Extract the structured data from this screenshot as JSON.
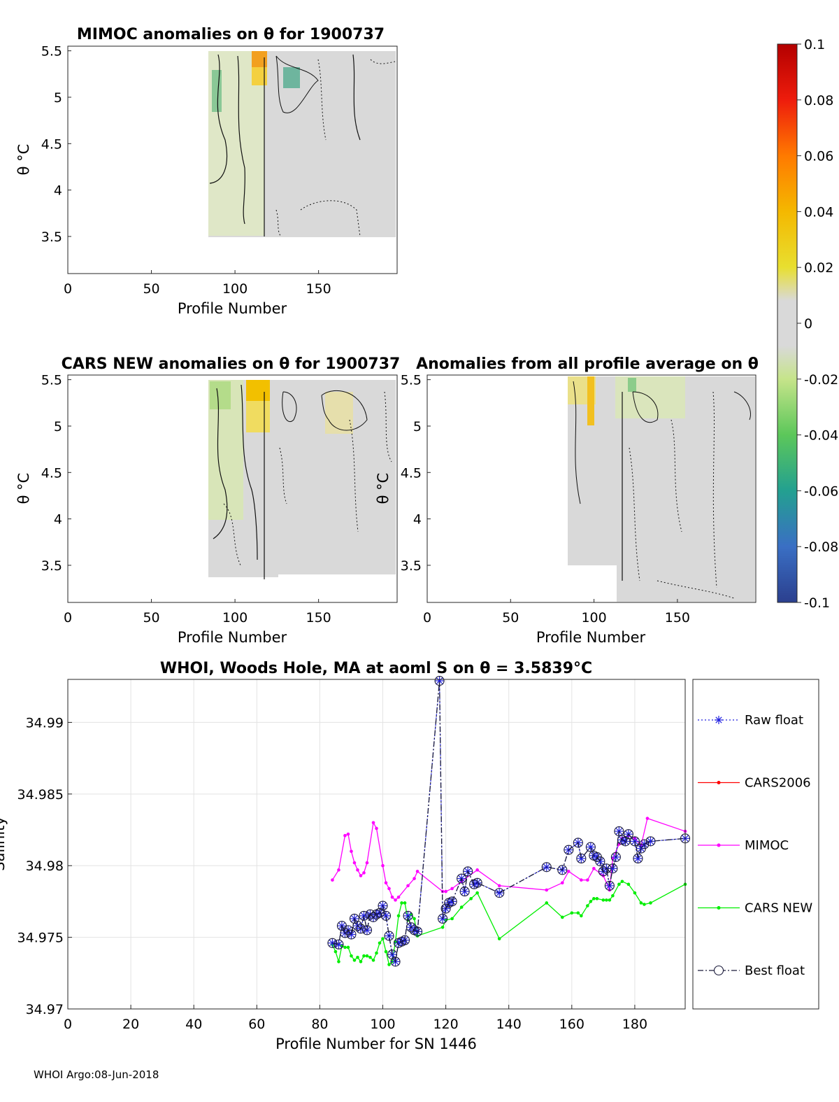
{
  "colors": {
    "raw_float": "#1f1fe0",
    "cars2006": "#ff0000",
    "mimoc": "#ff00ff",
    "cars_new": "#00ee00",
    "best_float": "#1a1a3a",
    "background_field": "#d9d9d9"
  },
  "colorbar": {
    "ticks": [
      "0.1",
      "0.08",
      "0.06",
      "0.04",
      "0.02",
      "0",
      "-0.02",
      "-0.04",
      "-0.06",
      "-0.08",
      "-0.1"
    ],
    "range": [
      -0.1,
      0.1
    ]
  },
  "panels": {
    "mimoc": {
      "title": "MIMOC anomalies on θ  for 1900737",
      "xlabel": "Profile Number",
      "ylabel": "θ °C",
      "xticks": [
        "0",
        "50",
        "100",
        "150"
      ],
      "yticks": [
        "5.5",
        "5",
        "4.5",
        "4",
        "3.5"
      ]
    },
    "cars_new": {
      "title": "CARS NEW anomalies on θ for 1900737",
      "xlabel": "Profile Number",
      "ylabel": "θ °C",
      "xticks": [
        "0",
        "50",
        "100",
        "150"
      ],
      "yticks": [
        "5.5",
        "5",
        "4.5",
        "4",
        "3.5"
      ]
    },
    "all_avg": {
      "title": "Anomalies from all profile average on θ",
      "xlabel": "Profile Number",
      "ylabel": "θ °C",
      "xticks": [
        "0",
        "50",
        "100",
        "150"
      ],
      "yticks": [
        "5.5",
        "5",
        "4.5",
        "4",
        "3.5"
      ]
    }
  },
  "footer": "WHOI Argo:08-Jun-2018",
  "chart_data": [
    {
      "type": "heatmap",
      "title": "MIMOC anomalies on θ  for 1900737",
      "xlabel": "Profile Number",
      "ylabel": "θ °C",
      "xlim": [
        0,
        197
      ],
      "ylim": [
        3.1,
        5.55
      ],
      "data_x_range": [
        84,
        196
      ],
      "data_y_range": [
        3.55,
        5.5
      ],
      "features": [
        {
          "x": [
            113,
            119
          ],
          "y": [
            5.2,
            5.5
          ],
          "anomaly": 0.05
        },
        {
          "x": [
            86,
            92
          ],
          "y": [
            4.8,
            5.2
          ],
          "anomaly": -0.035
        },
        {
          "x": [
            130,
            142
          ],
          "y": [
            4.9,
            5.3
          ],
          "anomaly": -0.03
        },
        {
          "x": [
            84,
            112
          ],
          "y": [
            3.6,
            5.5
          ],
          "anomaly": -0.01
        }
      ]
    },
    {
      "type": "heatmap",
      "title": "CARS NEW anomalies on θ for 1900737",
      "xlabel": "Profile Number",
      "ylabel": "θ °C",
      "xlim": [
        0,
        197
      ],
      "ylim": [
        3.1,
        5.55
      ],
      "data_x_range": [
        84,
        196
      ],
      "data_y_range": [
        3.4,
        5.55
      ],
      "features": [
        {
          "x": [
            108,
            121
          ],
          "y": [
            4.95,
            5.55
          ],
          "anomaly": 0.035
        },
        {
          "x": [
            84,
            105
          ],
          "y": [
            4.5,
            5.5
          ],
          "anomaly": -0.015
        },
        {
          "x": [
            158,
            172
          ],
          "y": [
            4.9,
            5.4
          ],
          "anomaly": 0.01
        }
      ]
    },
    {
      "type": "heatmap",
      "title": "Anomalies from all profile average on θ",
      "xlabel": "Profile Number",
      "ylabel": "θ °C",
      "xlim": [
        0,
        197
      ],
      "ylim": [
        3.1,
        5.55
      ],
      "data_x_range": [
        84,
        196
      ],
      "data_y_range": [
        3.1,
        5.55
      ],
      "features": [
        {
          "x": [
            84,
            100
          ],
          "y": [
            5.2,
            5.55
          ],
          "anomaly": 0.02
        },
        {
          "x": [
            110,
            140
          ],
          "y": [
            5.0,
            5.5
          ],
          "anomaly": -0.015
        }
      ]
    },
    {
      "type": "line",
      "title": "WHOI, Woods Hole, MA at aoml S on θ = 3.5839°C",
      "xlabel": "Profile Number for SN 1446",
      "ylabel": "Salinity",
      "xlim": [
        0,
        196
      ],
      "ylim": [
        34.97,
        34.993
      ],
      "xticks": [
        0,
        20,
        40,
        60,
        80,
        100,
        120,
        140,
        160,
        180
      ],
      "yticks": [
        34.97,
        34.975,
        34.98,
        34.985,
        34.99
      ],
      "grid": true,
      "legend_position": "right-outside",
      "legend": [
        "Raw float",
        "CARS2006",
        "MIMOC",
        "CARS NEW",
        "Best float"
      ],
      "series": [
        {
          "name": "Raw float",
          "color_key": "raw_float",
          "x": [
            84,
            86,
            87,
            88,
            89,
            90,
            91,
            92,
            93,
            94,
            95,
            96,
            97,
            98,
            99,
            100,
            101,
            102,
            103,
            104,
            105,
            106,
            107,
            108,
            109,
            110,
            111,
            118,
            119,
            120,
            121,
            122,
            125,
            126,
            127,
            129,
            130,
            137,
            152,
            157,
            159,
            162,
            163,
            166,
            167,
            168,
            169,
            170,
            171,
            172,
            173,
            174,
            175,
            176,
            177,
            178,
            180,
            181,
            182,
            183,
            185,
            196
          ],
          "y": [
            34.9746,
            34.9745,
            34.9758,
            34.9753,
            34.9755,
            34.9752,
            34.9763,
            34.9758,
            34.9756,
            34.9765,
            34.9755,
            34.9766,
            34.9764,
            34.9766,
            34.9767,
            34.9772,
            34.9765,
            34.9751,
            34.9738,
            34.9733,
            34.9746,
            34.9747,
            34.9748,
            34.9765,
            34.9757,
            34.9755,
            34.9754,
            34.9929,
            34.9763,
            34.977,
            34.9774,
            34.9775,
            34.9791,
            34.9782,
            34.9796,
            34.9787,
            34.9788,
            34.9781,
            34.9799,
            34.9797,
            34.9811,
            34.9816,
            34.9805,
            34.9813,
            34.9807,
            34.9806,
            34.9803,
            34.9796,
            34.9798,
            34.9786,
            34.9798,
            34.9806,
            34.9824,
            34.9818,
            34.9817,
            34.9822,
            34.9817,
            34.9805,
            34.9812,
            34.9815,
            34.9817,
            34.9819
          ]
        },
        {
          "name": "CARS2006",
          "color_key": "cars2006",
          "x": [],
          "y": []
        },
        {
          "name": "MIMOC",
          "color_key": "mimoc",
          "x": [
            84,
            86,
            88,
            89,
            90,
            91,
            92,
            93,
            94,
            95,
            97,
            98,
            100,
            101,
            102,
            103,
            104,
            105,
            108,
            110,
            111,
            119,
            120,
            122,
            125,
            130,
            137,
            152,
            157,
            159,
            163,
            165,
            167,
            170,
            172,
            173,
            175,
            176,
            178,
            180,
            182,
            184,
            196
          ],
          "y": [
            34.979,
            34.9797,
            34.9821,
            34.9822,
            34.981,
            34.9802,
            34.9797,
            34.9793,
            34.9795,
            34.9802,
            34.983,
            34.9826,
            34.98,
            34.9788,
            34.9784,
            34.9778,
            34.9776,
            34.9778,
            34.9786,
            34.9791,
            34.9796,
            34.9782,
            34.9782,
            34.9784,
            34.9789,
            34.9797,
            34.9786,
            34.9783,
            34.9788,
            34.9796,
            34.979,
            34.979,
            34.9798,
            34.9793,
            34.9783,
            34.9805,
            34.9815,
            34.9819,
            34.9821,
            34.9819,
            34.9814,
            34.9833,
            34.9824
          ]
        },
        {
          "name": "CARS NEW",
          "color_key": "cars_new",
          "x": [
            84,
            85,
            86,
            87,
            88,
            89,
            90,
            91,
            92,
            93,
            94,
            95,
            96,
            97,
            98,
            99,
            100,
            101,
            102,
            103,
            104,
            105,
            106,
            107,
            108,
            109,
            110,
            111,
            119,
            120,
            122,
            125,
            128,
            130,
            137,
            152,
            157,
            160,
            162,
            163,
            165,
            166,
            167,
            168,
            170,
            171,
            172,
            173,
            175,
            176,
            178,
            180,
            182,
            183,
            185,
            196
          ],
          "y": [
            34.9745,
            34.974,
            34.9733,
            34.9744,
            34.9743,
            34.9743,
            34.9737,
            34.9734,
            34.9736,
            34.9733,
            34.9737,
            34.9737,
            34.9736,
            34.9734,
            34.9739,
            34.9746,
            34.9749,
            34.974,
            34.9731,
            34.9733,
            34.9747,
            34.9765,
            34.9774,
            34.9774,
            34.9762,
            34.9766,
            34.9763,
            34.9751,
            34.9757,
            34.9762,
            34.9763,
            34.9771,
            34.9777,
            34.9781,
            34.9749,
            34.9774,
            34.9764,
            34.9767,
            34.9767,
            34.9765,
            34.9772,
            34.9775,
            34.9777,
            34.9777,
            34.9776,
            34.9776,
            34.9776,
            34.9779,
            34.9787,
            34.9789,
            34.9787,
            34.9781,
            34.9774,
            34.9773,
            34.9774,
            34.9787
          ]
        },
        {
          "name": "Best float",
          "color_key": "best_float",
          "x": [
            84,
            86,
            87,
            88,
            89,
            90,
            91,
            92,
            93,
            94,
            95,
            96,
            97,
            98,
            99,
            100,
            101,
            102,
            103,
            104,
            105,
            106,
            107,
            108,
            109,
            110,
            111,
            118,
            119,
            120,
            121,
            122,
            125,
            126,
            127,
            129,
            130,
            137,
            152,
            157,
            159,
            162,
            163,
            166,
            167,
            168,
            169,
            170,
            171,
            172,
            173,
            174,
            175,
            176,
            177,
            178,
            180,
            181,
            182,
            183,
            185,
            196
          ],
          "y": [
            34.9746,
            34.9745,
            34.9758,
            34.9753,
            34.9755,
            34.9752,
            34.9763,
            34.9758,
            34.9756,
            34.9765,
            34.9755,
            34.9766,
            34.9764,
            34.9766,
            34.9767,
            34.9772,
            34.9765,
            34.9751,
            34.9738,
            34.9733,
            34.9746,
            34.9747,
            34.9748,
            34.9765,
            34.9757,
            34.9755,
            34.9754,
            34.9929,
            34.9763,
            34.977,
            34.9774,
            34.9775,
            34.9791,
            34.9782,
            34.9796,
            34.9787,
            34.9788,
            34.9781,
            34.9799,
            34.9797,
            34.9811,
            34.9816,
            34.9805,
            34.9813,
            34.9807,
            34.9806,
            34.9803,
            34.9796,
            34.9798,
            34.9786,
            34.9798,
            34.9806,
            34.9824,
            34.9818,
            34.9817,
            34.9822,
            34.9817,
            34.9805,
            34.9812,
            34.9815,
            34.9817,
            34.9819
          ]
        }
      ]
    }
  ]
}
